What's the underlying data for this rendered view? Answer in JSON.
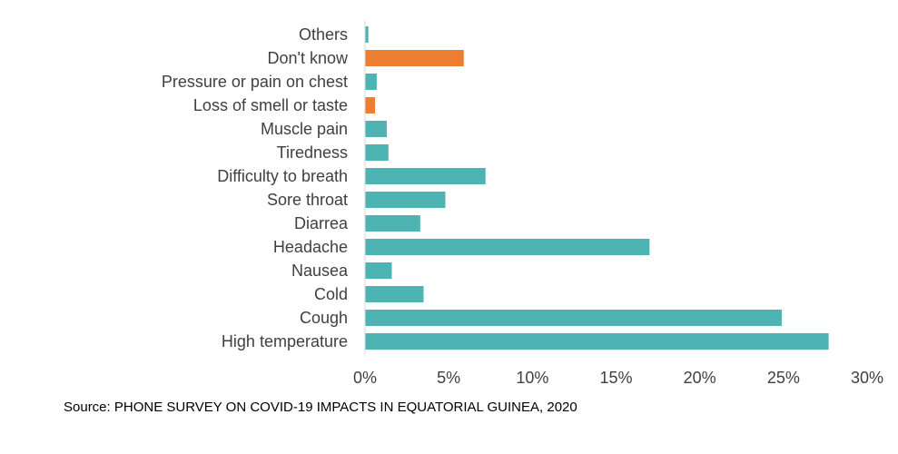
{
  "chart_data": {
    "type": "bar",
    "orientation": "horizontal",
    "categories": [
      "Others",
      "Don't know",
      "Pressure or pain on chest",
      "Loss of smell or taste",
      "Muscle pain",
      "Tiredness",
      "Difficulty to breath",
      "Sore throat",
      "Diarrea",
      "Headache",
      "Nausea",
      "Cold",
      "Cough",
      "High temperature"
    ],
    "values": [
      0.2,
      5.9,
      0.7,
      0.6,
      1.3,
      1.4,
      7.2,
      4.8,
      3.3,
      17.0,
      1.6,
      3.5,
      24.9,
      27.7
    ],
    "bar_colors": [
      "#4DB3B3",
      "#ED7D31",
      "#4DB3B3",
      "#ED7D31",
      "#4DB3B3",
      "#4DB3B3",
      "#4DB3B3",
      "#4DB3B3",
      "#4DB3B3",
      "#4DB3B3",
      "#4DB3B3",
      "#4DB3B3",
      "#4DB3B3",
      "#4DB3B3"
    ],
    "xlim": [
      0,
      30
    ],
    "x_ticks": [
      0,
      5,
      10,
      15,
      20,
      25,
      30
    ],
    "x_tick_labels": [
      "0%",
      "5%",
      "10%",
      "15%",
      "20%",
      "25%",
      "30%"
    ],
    "title": "",
    "xlabel": "",
    "ylabel": "",
    "grid": false,
    "colors": {
      "primary": "#4DB3B3",
      "highlight": "#ED7D31",
      "axis": "#D9D9D9",
      "text": "#404040"
    }
  },
  "source": "Source: PHONE SURVEY ON COVID-19 IMPACTS IN EQUATORIAL GUINEA, 2020"
}
